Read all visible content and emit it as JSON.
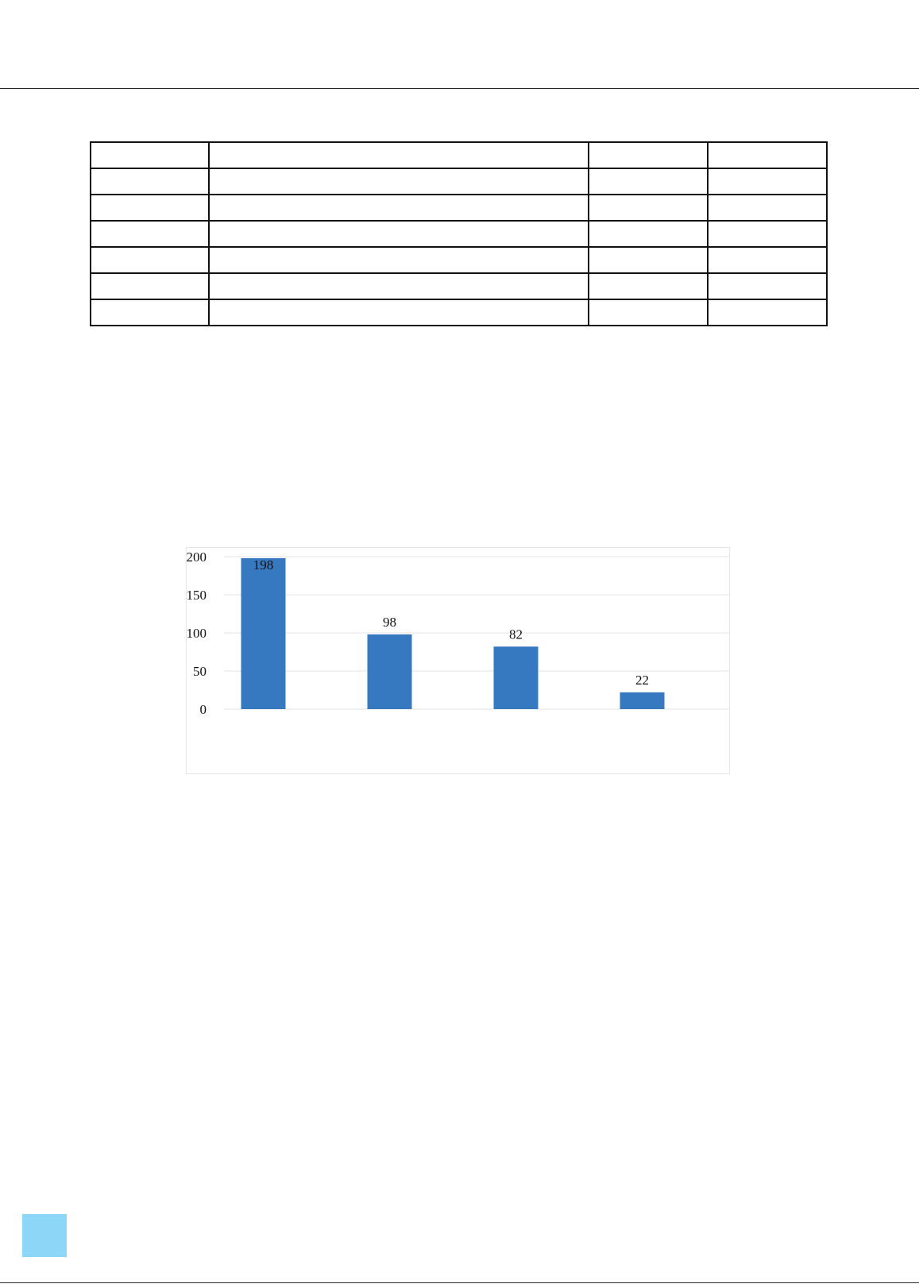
{
  "table": {
    "rows": 7,
    "cols": 4
  },
  "chart_data": {
    "type": "bar",
    "categories": [
      "",
      "",
      "",
      ""
    ],
    "values": [
      198,
      98,
      82,
      22
    ],
    "data_labels": [
      "198",
      "98",
      "82",
      "22"
    ],
    "yticks": [
      "0",
      "50",
      "100",
      "150",
      "200"
    ],
    "ylim": [
      0,
      200
    ],
    "grid": true,
    "bar_color": "#3779c1"
  },
  "colors": {
    "corner_square": "#8ed6f8"
  }
}
